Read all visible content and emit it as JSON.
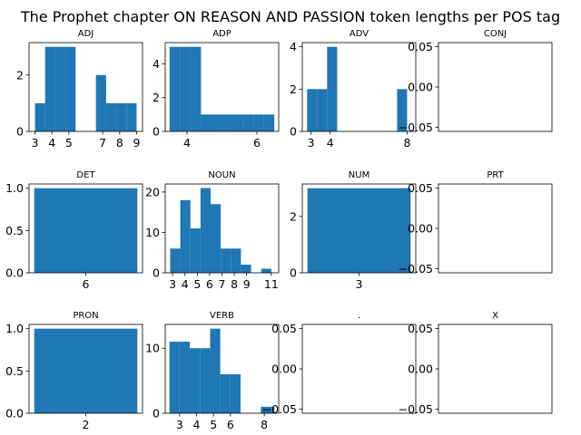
{
  "title": "The Prophet chapter ON REASON AND PASSION token lengths per POS tag",
  "bar_color": "#1f77b4",
  "chart_data": [
    {
      "type": "bar",
      "title": "ADJ",
      "xlim": [
        2.65,
        9.35
      ],
      "ylim": [
        0,
        3.15
      ],
      "bins": [
        [
          3,
          3.6,
          1
        ],
        [
          3.6,
          4.2,
          3
        ],
        [
          4.2,
          4.8,
          3
        ],
        [
          4.8,
          5.4,
          3
        ],
        [
          6.6,
          7.2,
          2
        ],
        [
          7.2,
          7.8,
          1
        ],
        [
          7.8,
          8.4,
          1
        ],
        [
          8.4,
          9,
          1
        ]
      ],
      "xticks": [
        {
          "v": 3,
          "label": "3"
        },
        {
          "v": 4,
          "label": "4"
        },
        {
          "v": 5,
          "label": "5"
        },
        {
          "v": 7,
          "label": "7"
        },
        {
          "v": 8,
          "label": "8"
        },
        {
          "v": 9,
          "label": "9"
        }
      ],
      "yticks": [
        {
          "v": 0,
          "label": "0"
        },
        {
          "v": 2,
          "label": "2"
        }
      ]
    },
    {
      "type": "bar",
      "title": "ADP",
      "xlim": [
        3.375,
        6.625
      ],
      "ylim": [
        0,
        5.25
      ],
      "bins": [
        [
          3.5,
          3.8,
          5
        ],
        [
          3.8,
          4.1,
          5
        ],
        [
          4.1,
          4.4,
          5
        ],
        [
          4.4,
          4.7,
          1
        ],
        [
          4.7,
          5,
          1
        ],
        [
          5,
          5.3,
          1
        ],
        [
          5.3,
          5.6,
          1
        ],
        [
          5.6,
          5.9,
          1
        ],
        [
          5.9,
          6.2,
          1
        ],
        [
          6.2,
          6.5,
          1
        ]
      ],
      "xticks": [
        {
          "v": 4,
          "label": "4"
        },
        {
          "v": 6,
          "label": "6"
        }
      ],
      "yticks": [
        {
          "v": 0,
          "label": "0"
        },
        {
          "v": 2,
          "label": "2"
        },
        {
          "v": 4,
          "label": "4"
        }
      ]
    },
    {
      "type": "bar",
      "title": "ADV",
      "xlim": [
        2.55,
        8.45
      ],
      "ylim": [
        0,
        4.2
      ],
      "bins": [
        [
          2.8,
          3.32,
          2
        ],
        [
          3.32,
          3.84,
          2
        ],
        [
          3.84,
          4.36,
          4
        ],
        [
          7.48,
          8,
          2
        ]
      ],
      "xticks": [
        {
          "v": 3,
          "label": "3"
        },
        {
          "v": 4,
          "label": "4"
        },
        {
          "v": 8,
          "label": "8"
        }
      ],
      "yticks": [
        {
          "v": 0,
          "label": "0"
        },
        {
          "v": 2,
          "label": "2"
        },
        {
          "v": 4,
          "label": "4"
        }
      ]
    },
    {
      "type": "bar",
      "title": "CONJ",
      "xlim": [
        -0.055,
        0.055
      ],
      "ylim": [
        -0.055,
        0.055
      ],
      "bins": [],
      "xticks": [],
      "yticks": [
        {
          "v": 0.05,
          "label": "0.05"
        },
        {
          "v": 0,
          "label": "0.00"
        },
        {
          "v": -0.05,
          "label": "−0.05"
        }
      ]
    },
    {
      "type": "bar",
      "title": "DET",
      "xlim": [
        5.45,
        6.55
      ],
      "ylim": [
        0,
        1.05
      ],
      "bins": [
        [
          5.5,
          6.5,
          1
        ]
      ],
      "xticks": [
        {
          "v": 6,
          "label": "6"
        }
      ],
      "yticks": [
        {
          "v": 0,
          "label": "0.0"
        },
        {
          "v": 0.5,
          "label": "0.5"
        },
        {
          "v": 1,
          "label": "1.0"
        }
      ]
    },
    {
      "type": "bar",
      "title": "NOUN",
      "xlim": [
        2.4,
        11.6
      ],
      "ylim": [
        0,
        22
      ],
      "bins": [
        [
          2.8,
          3.62,
          6
        ],
        [
          3.62,
          4.44,
          18
        ],
        [
          4.44,
          5.26,
          11
        ],
        [
          5.26,
          6.08,
          21
        ],
        [
          6.08,
          6.9,
          17
        ],
        [
          6.9,
          7.72,
          6
        ],
        [
          7.72,
          8.54,
          6
        ],
        [
          8.54,
          9.36,
          2
        ],
        [
          10.18,
          11,
          1
        ]
      ],
      "xticks": [
        {
          "v": 3,
          "label": "3"
        },
        {
          "v": 4,
          "label": "4"
        },
        {
          "v": 5,
          "label": "5"
        },
        {
          "v": 6,
          "label": "6"
        },
        {
          "v": 7,
          "label": "7"
        },
        {
          "v": 8,
          "label": "8"
        },
        {
          "v": 9,
          "label": "9"
        },
        {
          "v": 11,
          "label": "11"
        }
      ],
      "yticks": [
        {
          "v": 0,
          "label": "0"
        },
        {
          "v": 10,
          "label": "10"
        },
        {
          "v": 20,
          "label": "20"
        }
      ]
    },
    {
      "type": "bar",
      "title": "NUM",
      "xlim": [
        2.45,
        3.55
      ],
      "ylim": [
        0,
        3.15
      ],
      "bins": [
        [
          2.5,
          3.5,
          3
        ]
      ],
      "xticks": [
        {
          "v": 3,
          "label": "3"
        }
      ],
      "yticks": [
        {
          "v": 0,
          "label": "0"
        },
        {
          "v": 2,
          "label": "2"
        }
      ]
    },
    {
      "type": "bar",
      "title": "PRT",
      "xlim": [
        -0.055,
        0.055
      ],
      "ylim": [
        -0.055,
        0.055
      ],
      "bins": [],
      "xticks": [],
      "yticks": [
        {
          "v": 0.05,
          "label": "0.05"
        },
        {
          "v": 0,
          "label": "0.00"
        },
        {
          "v": -0.05,
          "label": "−0.05"
        }
      ]
    },
    {
      "type": "bar",
      "title": "PRON",
      "xlim": [
        1.45,
        2.55
      ],
      "ylim": [
        0,
        1.05
      ],
      "bins": [
        [
          1.5,
          2.5,
          1
        ]
      ],
      "xticks": [
        {
          "v": 2,
          "label": "2"
        }
      ],
      "yticks": [
        {
          "v": 0,
          "label": "0.0"
        },
        {
          "v": 0.5,
          "label": "0.5"
        },
        {
          "v": 1,
          "label": "1.0"
        }
      ]
    },
    {
      "type": "bar",
      "title": "VERB",
      "xlim": [
        2.15,
        8.85
      ],
      "ylim": [
        0,
        13.65
      ],
      "bins": [
        [
          2.4,
          3,
          11
        ],
        [
          3,
          3.6,
          11
        ],
        [
          3.6,
          4.2,
          10
        ],
        [
          4.2,
          4.8,
          10
        ],
        [
          4.8,
          5.4,
          13
        ],
        [
          5.4,
          6,
          6
        ],
        [
          6,
          6.6,
          6
        ],
        [
          7.8,
          8.4,
          1
        ],
        [
          8.4,
          8.6,
          1
        ]
      ],
      "xticks": [
        {
          "v": 3,
          "label": "3"
        },
        {
          "v": 4,
          "label": "4"
        },
        {
          "v": 5,
          "label": "5"
        },
        {
          "v": 6,
          "label": "6"
        },
        {
          "v": 8,
          "label": "8"
        }
      ],
      "yticks": [
        {
          "v": 0,
          "label": "0"
        },
        {
          "v": 10,
          "label": "10"
        }
      ]
    },
    {
      "type": "bar",
      "title": ".",
      "xlim": [
        -0.055,
        0.055
      ],
      "ylim": [
        -0.055,
        0.055
      ],
      "bins": [],
      "xticks": [],
      "yticks": [
        {
          "v": 0.05,
          "label": "0.05"
        },
        {
          "v": 0,
          "label": "0.00"
        },
        {
          "v": -0.05,
          "label": "−0.05"
        }
      ]
    },
    {
      "type": "bar",
      "title": "X",
      "xlim": [
        -0.055,
        0.055
      ],
      "ylim": [
        -0.055,
        0.055
      ],
      "bins": [],
      "xticks": [],
      "yticks": [
        {
          "v": 0.05,
          "label": "0.05"
        },
        {
          "v": 0,
          "label": "0.00"
        },
        {
          "v": -0.05,
          "label": "−0.05"
        }
      ]
    }
  ]
}
